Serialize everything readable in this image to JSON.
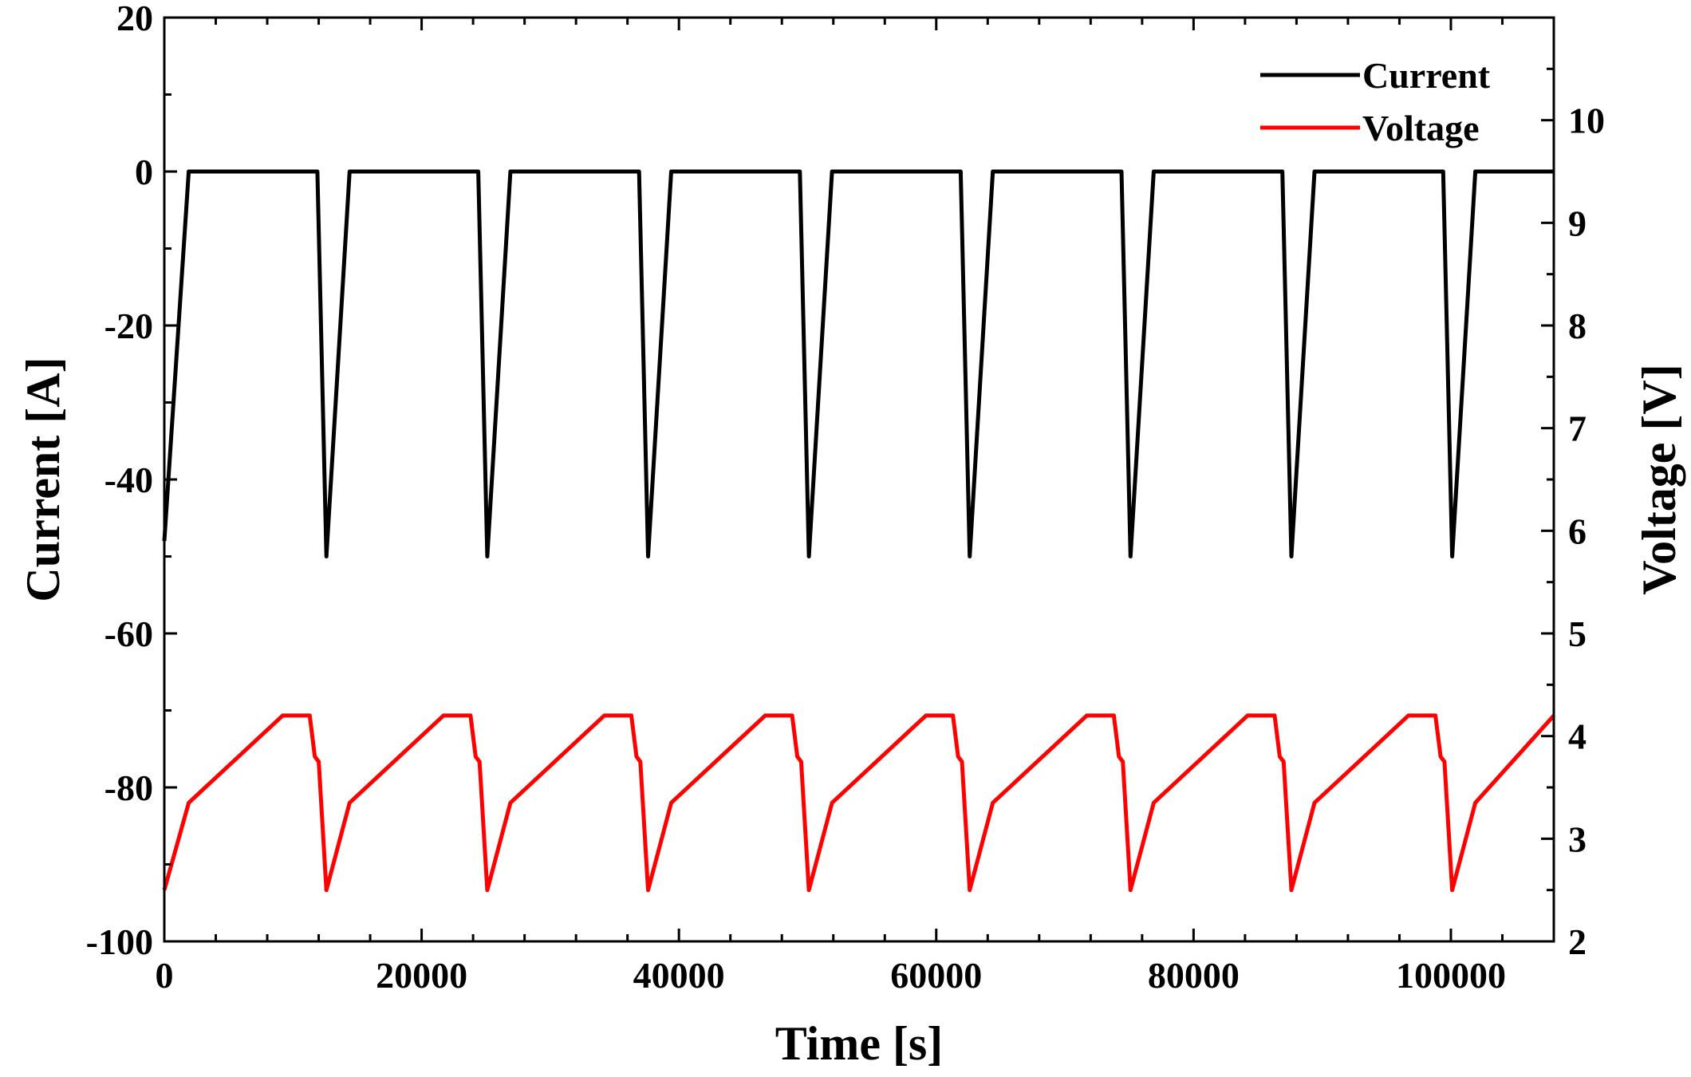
{
  "chart_data": {
    "type": "line",
    "title": "",
    "xlabel": "Time [s]",
    "ylabel_left": "Current [A]",
    "ylabel_right": "Voltage [V]",
    "xlim": [
      0,
      108000
    ],
    "ylim_left": [
      -100,
      20
    ],
    "ylim_right": [
      2,
      11
    ],
    "x_ticks": [
      0,
      20000,
      40000,
      60000,
      80000,
      100000
    ],
    "x_tick_labels": [
      "0",
      "20000",
      "40000",
      "60000",
      "80000",
      "100000"
    ],
    "y_left_ticks": [
      -100,
      -80,
      -60,
      -40,
      -20,
      0,
      20
    ],
    "y_left_tick_labels": [
      "-100",
      "-80",
      "-60",
      "-40",
      "-20",
      "0",
      "20"
    ],
    "y_right_ticks": [
      2,
      3,
      4,
      5,
      6,
      7,
      8,
      9,
      10
    ],
    "y_right_tick_labels": [
      "2",
      "3",
      "4",
      "5",
      "6",
      "7",
      "8",
      "9",
      "10"
    ],
    "legend": {
      "position": "top-right",
      "entries": [
        "Current",
        "Voltage"
      ]
    },
    "grid": false,
    "series": [
      {
        "name": "Current",
        "axis": "left",
        "color": "#000000",
        "x": [
          0,
          1900,
          11900,
          12600,
          14400,
          24400,
          25100,
          26900,
          36900,
          37600,
          39400,
          49400,
          50100,
          51900,
          61900,
          62600,
          64400,
          74400,
          75100,
          76900,
          86900,
          87600,
          89400,
          99400,
          100100,
          101900,
          108000
        ],
        "values": [
          -48,
          0,
          0,
          -50,
          0,
          0,
          -50,
          0,
          0,
          -50,
          0,
          0,
          -50,
          0,
          0,
          -50,
          0,
          0,
          -50,
          0,
          0,
          -50,
          0,
          0,
          -50,
          0,
          0
        ]
      },
      {
        "name": "Voltage",
        "axis": "right",
        "color": "#ff0000",
        "x": [
          0,
          1900,
          9200,
          11300,
          11700,
          12000,
          12600,
          14400,
          21700,
          23800,
          24200,
          24500,
          25100,
          26900,
          34200,
          36300,
          36700,
          37000,
          37600,
          39400,
          46700,
          48800,
          49200,
          49500,
          50100,
          51900,
          59200,
          61300,
          61700,
          62000,
          62600,
          64400,
          71700,
          73800,
          74200,
          74500,
          75100,
          76900,
          84200,
          86300,
          86700,
          87000,
          87600,
          89400,
          96700,
          98800,
          99200,
          99500,
          100100,
          101900,
          108000
        ],
        "values": [
          2.5,
          3.35,
          4.2,
          4.2,
          3.8,
          3.75,
          2.5,
          3.35,
          4.2,
          4.2,
          3.8,
          3.75,
          2.5,
          3.35,
          4.2,
          4.2,
          3.8,
          3.75,
          2.5,
          3.35,
          4.2,
          4.2,
          3.8,
          3.75,
          2.5,
          3.35,
          4.2,
          4.2,
          3.8,
          3.75,
          2.5,
          3.35,
          4.2,
          4.2,
          3.8,
          3.75,
          2.5,
          3.35,
          4.2,
          4.2,
          3.8,
          3.75,
          2.5,
          3.35,
          4.2,
          4.2,
          3.8,
          3.75,
          2.5,
          3.35,
          4.2
        ]
      }
    ]
  }
}
